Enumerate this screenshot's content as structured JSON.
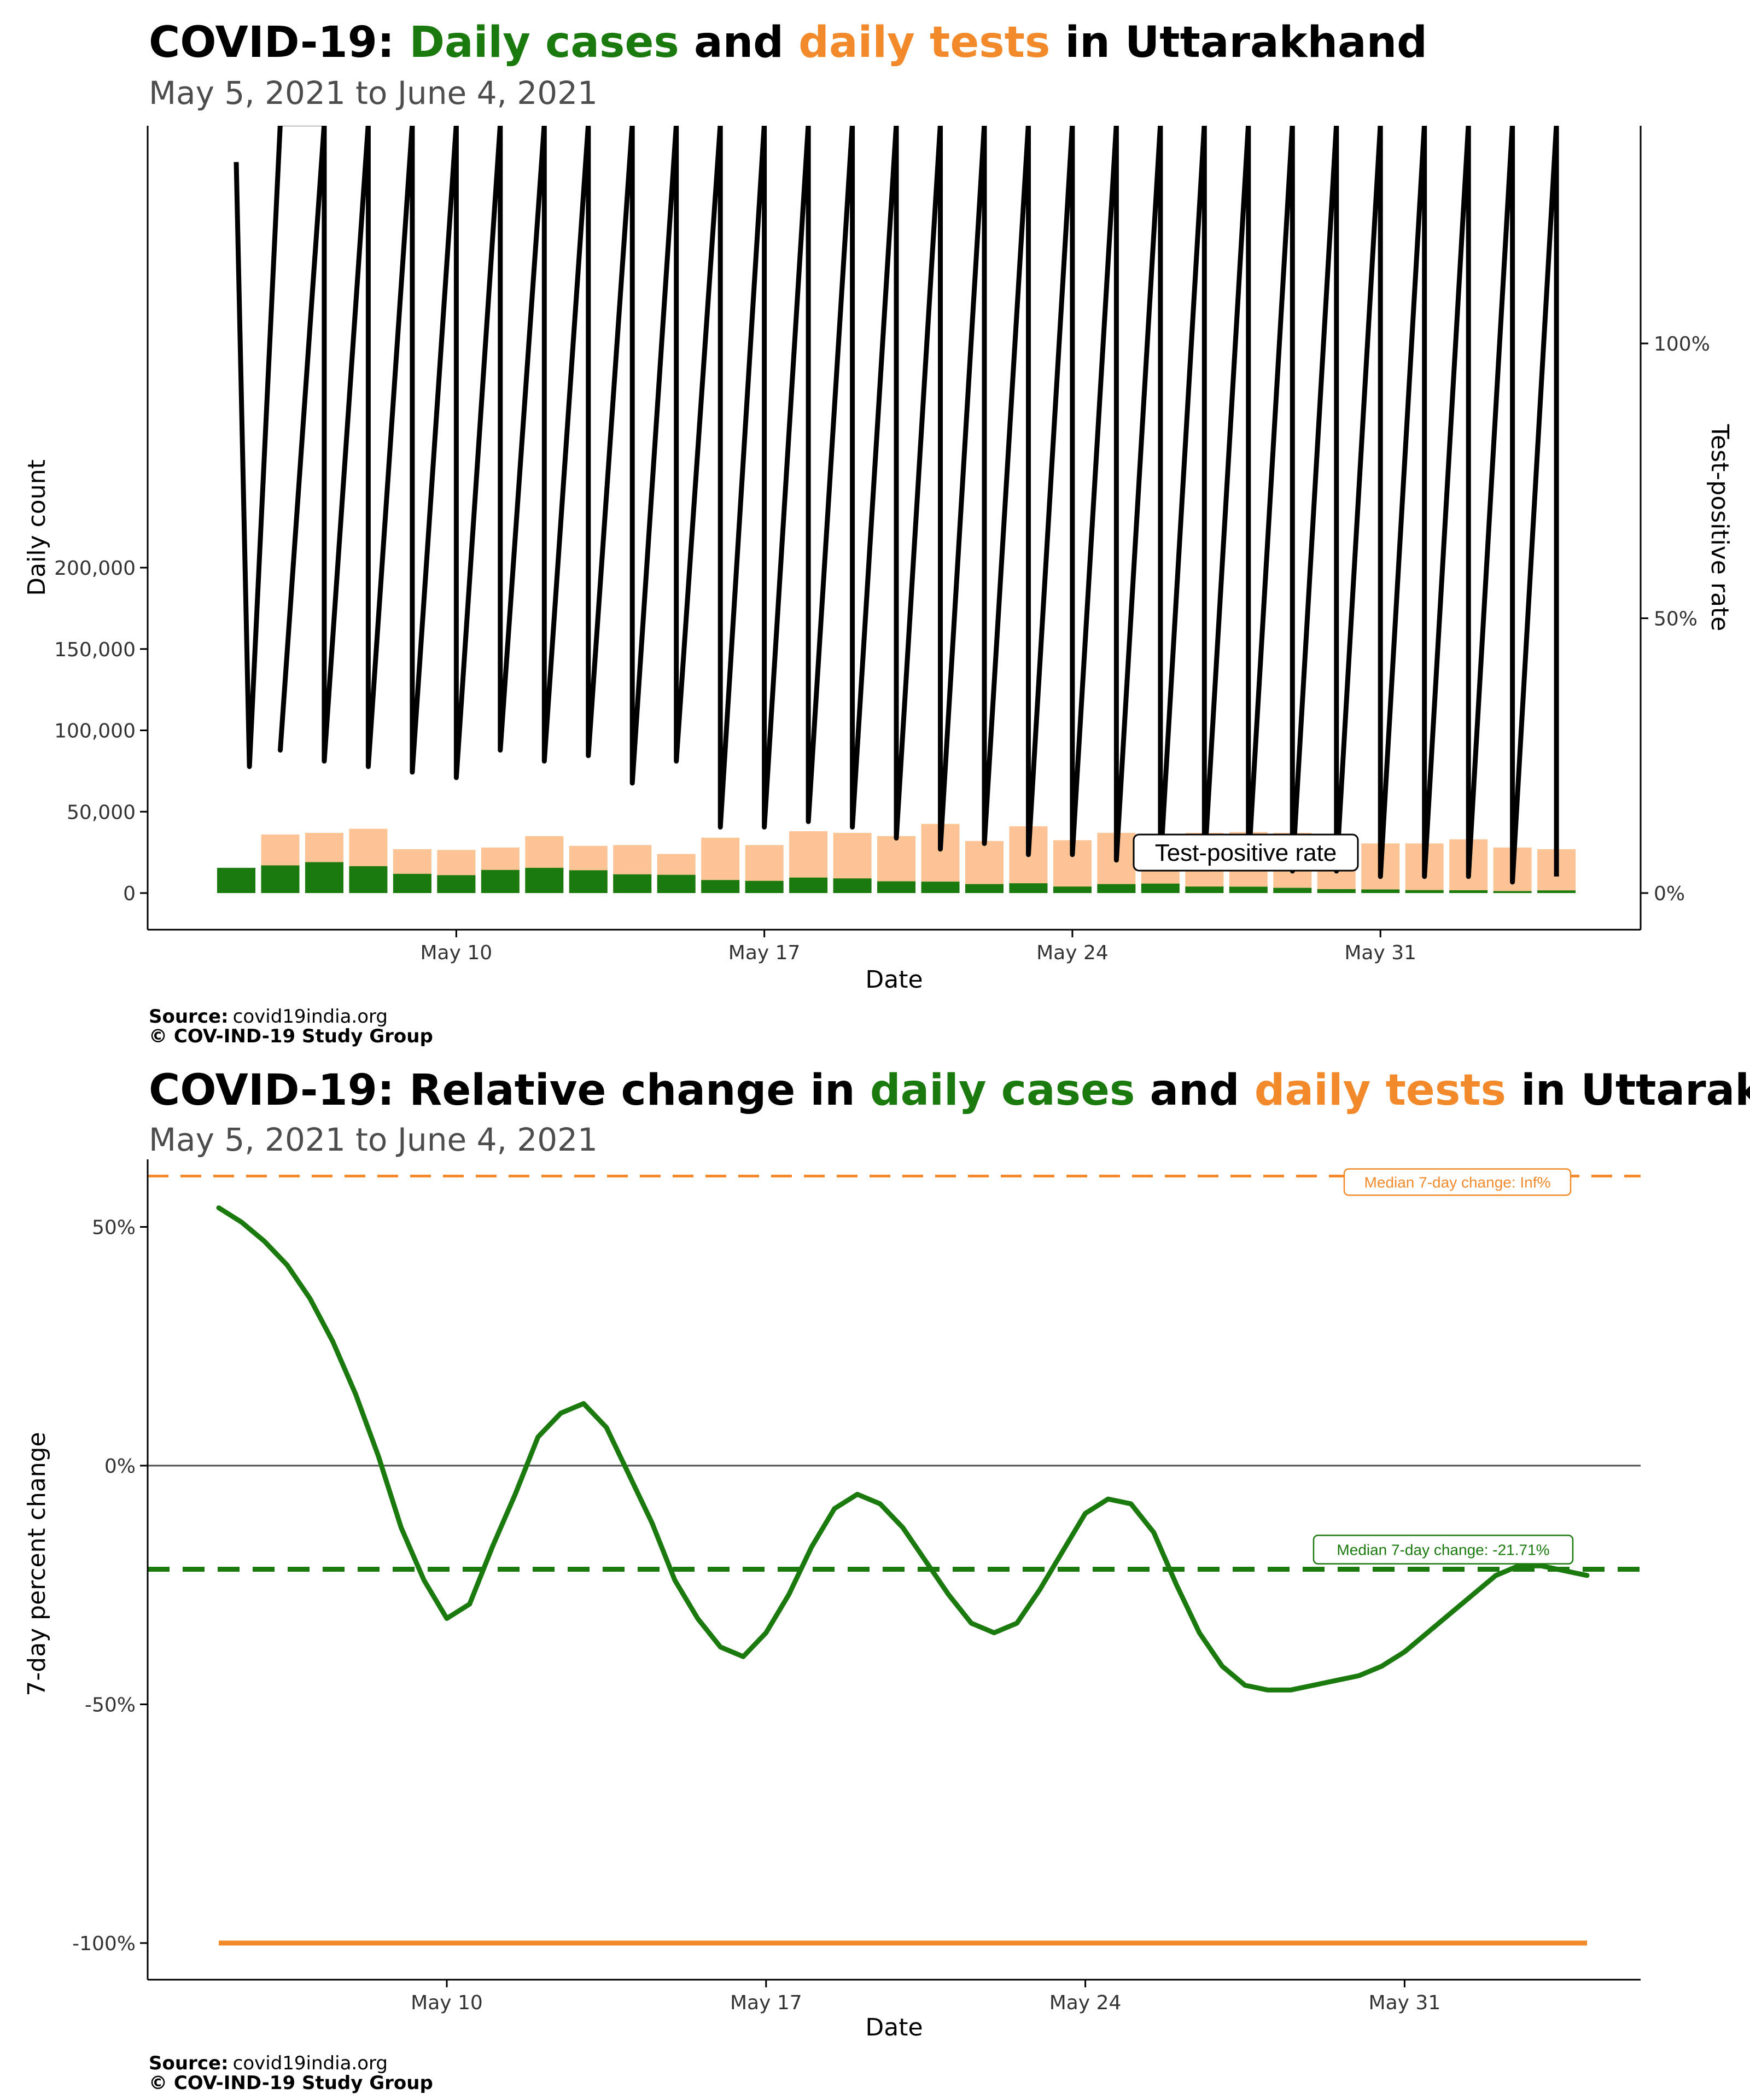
{
  "colors": {
    "cases": "#1a7a0e",
    "tests": "#fcc494",
    "tests_line": "#f28a2c",
    "tpr": "#000000",
    "axis": "#000000",
    "zero_line": "#4d4d4d"
  },
  "chart_data": [
    {
      "type": "bar",
      "title_parts": [
        {
          "text": "COVID-19: ",
          "role": "plain"
        },
        {
          "text": "Daily cases",
          "role": "cases"
        },
        {
          "text": " and ",
          "role": "plain"
        },
        {
          "text": "daily tests",
          "role": "tests"
        },
        {
          "text": " in Uttarakhand",
          "role": "plain"
        }
      ],
      "subtitle": "May  5, 2021 to June  4, 2021",
      "xlabel": "Date",
      "ylabel": "Daily count",
      "y2label": "Test-positive rate",
      "x_ticks": [
        "May 10",
        "May 17",
        "May 24",
        "May 31"
      ],
      "y_ticks": [
        "0",
        "50,000",
        "100,000",
        "150,000",
        "200,000"
      ],
      "y2_ticks": [
        "0%",
        "50%",
        "100%"
      ],
      "ylim": [
        0,
        236000
      ],
      "y2lim": [
        0,
        1.2
      ],
      "dates": [
        "May 5",
        "May 6",
        "May 7",
        "May 8",
        "May 9",
        "May 10",
        "May 11",
        "May 12",
        "May 13",
        "May 14",
        "May 15",
        "May 16",
        "May 17",
        "May 18",
        "May 19",
        "May 20",
        "May 21",
        "May 22",
        "May 23",
        "May 24",
        "May 25",
        "May 26",
        "May 27",
        "May 28",
        "May 29",
        "May 30",
        "May 31",
        "Jun 1",
        "Jun 2",
        "Jun 3",
        "Jun 4"
      ],
      "series": [
        {
          "name": "daily cases",
          "values": [
            15500,
            17000,
            19000,
            16500,
            11800,
            11000,
            14200,
            15500,
            14000,
            11500,
            11200,
            8000,
            7500,
            9500,
            9000,
            7200,
            7000,
            5500,
            6000,
            4000,
            5500,
            5800,
            4000,
            3900,
            3200,
            2400,
            2200,
            1800,
            1700,
            1200,
            1600
          ]
        },
        {
          "name": "daily tests",
          "values": [
            0,
            36000,
            37000,
            39500,
            27000,
            26500,
            28000,
            35000,
            29000,
            29500,
            24000,
            34000,
            29500,
            38000,
            37000,
            35000,
            42500,
            32000,
            41000,
            32500,
            37000,
            36500,
            37000,
            37500,
            37000,
            30500,
            30500,
            30500,
            33000,
            28000,
            27000
          ]
        }
      ],
      "test_positive_rate_polyline": [
        [
          0.0,
          1.33
        ],
        [
          0.3,
          0.23
        ],
        [
          1.0,
          1.4
        ],
        [
          2.0,
          1.4
        ],
        [
          1.0,
          0.26
        ],
        [
          2.0,
          1.4
        ],
        [
          2.0,
          0.24
        ],
        [
          3.0,
          1.4
        ],
        [
          3.0,
          0.23
        ],
        [
          4.0,
          1.4
        ],
        [
          4.0,
          0.22
        ],
        [
          5.0,
          1.4
        ],
        [
          5.0,
          0.21
        ],
        [
          6.0,
          1.4
        ],
        [
          6.0,
          0.26
        ],
        [
          7.0,
          1.4
        ],
        [
          7.0,
          0.24
        ],
        [
          8.0,
          1.4
        ],
        [
          8.0,
          0.25
        ],
        [
          9.0,
          1.4
        ],
        [
          9.0,
          0.2
        ],
        [
          10.0,
          1.4
        ],
        [
          10.0,
          0.24
        ],
        [
          11.0,
          1.4
        ],
        [
          11.0,
          0.12
        ],
        [
          12.0,
          1.4
        ],
        [
          12.0,
          0.12
        ],
        [
          13.0,
          1.4
        ],
        [
          13.0,
          0.13
        ],
        [
          14.0,
          1.4
        ],
        [
          14.0,
          0.12
        ],
        [
          15.0,
          1.4
        ],
        [
          15.0,
          0.1
        ],
        [
          16.0,
          1.4
        ],
        [
          16.0,
          0.08
        ],
        [
          17.0,
          1.4
        ],
        [
          17.0,
          0.09
        ],
        [
          18.0,
          1.4
        ],
        [
          18.0,
          0.07
        ],
        [
          19.0,
          1.4
        ],
        [
          19.0,
          0.07
        ],
        [
          20.0,
          1.4
        ],
        [
          20.0,
          0.06
        ],
        [
          21.0,
          1.4
        ],
        [
          21.0,
          0.05
        ],
        [
          22.0,
          1.4
        ],
        [
          22.0,
          0.05
        ],
        [
          23.0,
          1.4
        ],
        [
          23.0,
          0.05
        ],
        [
          24.0,
          1.4
        ],
        [
          24.0,
          0.04
        ],
        [
          25.0,
          1.4
        ],
        [
          25.0,
          0.04
        ],
        [
          26.0,
          1.4
        ],
        [
          26.0,
          0.03
        ],
        [
          27.0,
          1.4
        ],
        [
          27.0,
          0.03
        ],
        [
          28.0,
          1.4
        ],
        [
          28.0,
          0.03
        ],
        [
          29.0,
          1.4
        ],
        [
          29.0,
          0.02
        ],
        [
          30.0,
          1.4
        ],
        [
          30.0,
          0.03
        ]
      ],
      "annotation": "Test-positive rate",
      "source_label": "Source:",
      "source_value": "covid19india.org",
      "copyright": "© COV-IND-19 Study Group"
    },
    {
      "type": "line",
      "title_parts": [
        {
          "text": "COVID-19: Relative change in ",
          "role": "plain"
        },
        {
          "text": "daily cases",
          "role": "cases"
        },
        {
          "text": " and ",
          "role": "plain"
        },
        {
          "text": "daily tests",
          "role": "tests"
        },
        {
          "text": " in Uttarakhand",
          "role": "plain"
        }
      ],
      "subtitle": "May  5, 2021 to June  4, 2021",
      "xlabel": "Date",
      "ylabel": "7-day percent change",
      "x_ticks": [
        "May 10",
        "May 17",
        "May 24",
        "May 31"
      ],
      "y_ticks": [
        "-100%",
        "-50%",
        "0%",
        "50%"
      ],
      "ylim": [
        -107,
        62
      ],
      "series": [
        {
          "name": "daily cases",
          "x": [
            0,
            0.5,
            1,
            1.5,
            2,
            2.5,
            3,
            3.5,
            4,
            4.5,
            5,
            5.5,
            6,
            6.5,
            7,
            7.5,
            8,
            8.5,
            9,
            9.5,
            10,
            10.5,
            11,
            11.5,
            12,
            12.5,
            13,
            13.5,
            14,
            14.5,
            15,
            15.5,
            16,
            16.5,
            17,
            17.5,
            18,
            18.5,
            19,
            19.5,
            20,
            20.5,
            21,
            21.5,
            22,
            22.5,
            23,
            23.5,
            24,
            24.5,
            25,
            25.5,
            26,
            26.5,
            27,
            27.5,
            28,
            28.5,
            29,
            29.5,
            30
          ],
          "values": [
            54,
            51,
            47,
            42,
            35,
            26,
            15,
            2,
            -13,
            -24,
            -32,
            -29,
            -17,
            -6,
            6,
            11,
            13,
            8,
            -2,
            -12,
            -24,
            -32,
            -38,
            -40,
            -35,
            -27,
            -17,
            -9,
            -6,
            -8,
            -13,
            -20,
            -27,
            -33,
            -35,
            -33,
            -26,
            -18,
            -10,
            -7,
            -8,
            -14,
            -25,
            -35,
            -42,
            -46,
            -47,
            -47,
            -46,
            -45,
            -44,
            -42,
            -39,
            -35,
            -31,
            -27,
            -23,
            -21,
            -21,
            -22,
            -23
          ]
        },
        {
          "name": "daily tests",
          "x": [
            0,
            30
          ],
          "values": [
            -100,
            -100
          ]
        }
      ],
      "reference_lines": [
        {
          "name": "cases",
          "value": -21.71,
          "label": "Median 7-day change: -21.71%"
        },
        {
          "name": "tests",
          "value": 61,
          "label": "Median 7-day change: Inf%"
        }
      ],
      "source_label": "Source:",
      "source_value": "covid19india.org",
      "copyright": "© COV-IND-19 Study Group"
    }
  ]
}
